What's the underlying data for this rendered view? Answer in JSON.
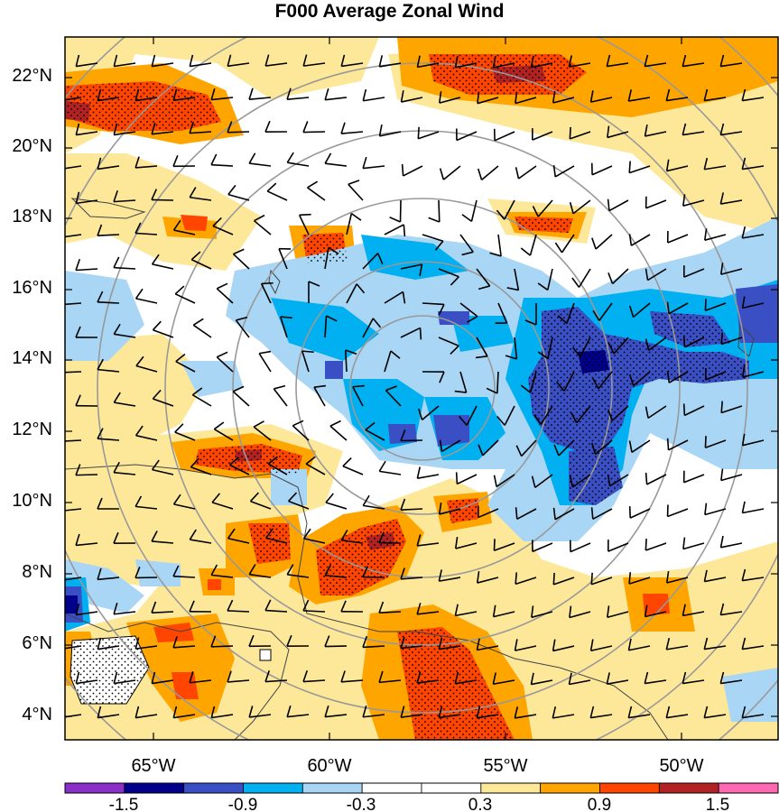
{
  "title": "F000 Average Zonal Wind",
  "lat_labels": [
    "22°N",
    "20°N",
    "18°N",
    "16°N",
    "14°N",
    "12°N",
    "10°N",
    "8°N",
    "6°N",
    "4°N"
  ],
  "lon_labels": [
    "65°W",
    "60°W",
    "55°W",
    "50°W"
  ],
  "colorbar": {
    "colors": [
      "#8b2fc9",
      "#00008b",
      "#3a4fc4",
      "#00b0f0",
      "#a9d6f5",
      "#ffffff",
      "#ffffff",
      "#fde89a",
      "#ffa500",
      "#ff4500",
      "#b22222",
      "#ff69b4"
    ],
    "labels": [
      "-1.5",
      "-0.9",
      "-0.3",
      "0.3",
      "0.9",
      "1.5"
    ]
  },
  "palette": {
    "white": "#ffffff",
    "light_yellow": "#fde89a",
    "orange": "#ffa500",
    "red_orange": "#ff4500",
    "dark_red": "#b22222",
    "light_blue": "#a9d6f5",
    "cyan_blue": "#00b0f0",
    "royal_blue": "#3a4fc4",
    "navy": "#00008b",
    "range_ring": "#999999",
    "coast": "#444444",
    "barb": "#000000"
  }
}
